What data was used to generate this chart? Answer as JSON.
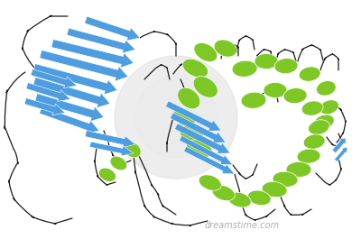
{
  "background_color": "#ffffff",
  "watermark_text": "dreamstime.com",
  "watermark_color": "#b0b0b0",
  "watermark_fontsize": 7,
  "blue": "#4d9de0",
  "green": "#7ec825",
  "loop_color": "#1a1a1a",
  "loop_lw": 0.9,
  "figsize": [
    4.0,
    2.65
  ],
  "dpi": 100
}
